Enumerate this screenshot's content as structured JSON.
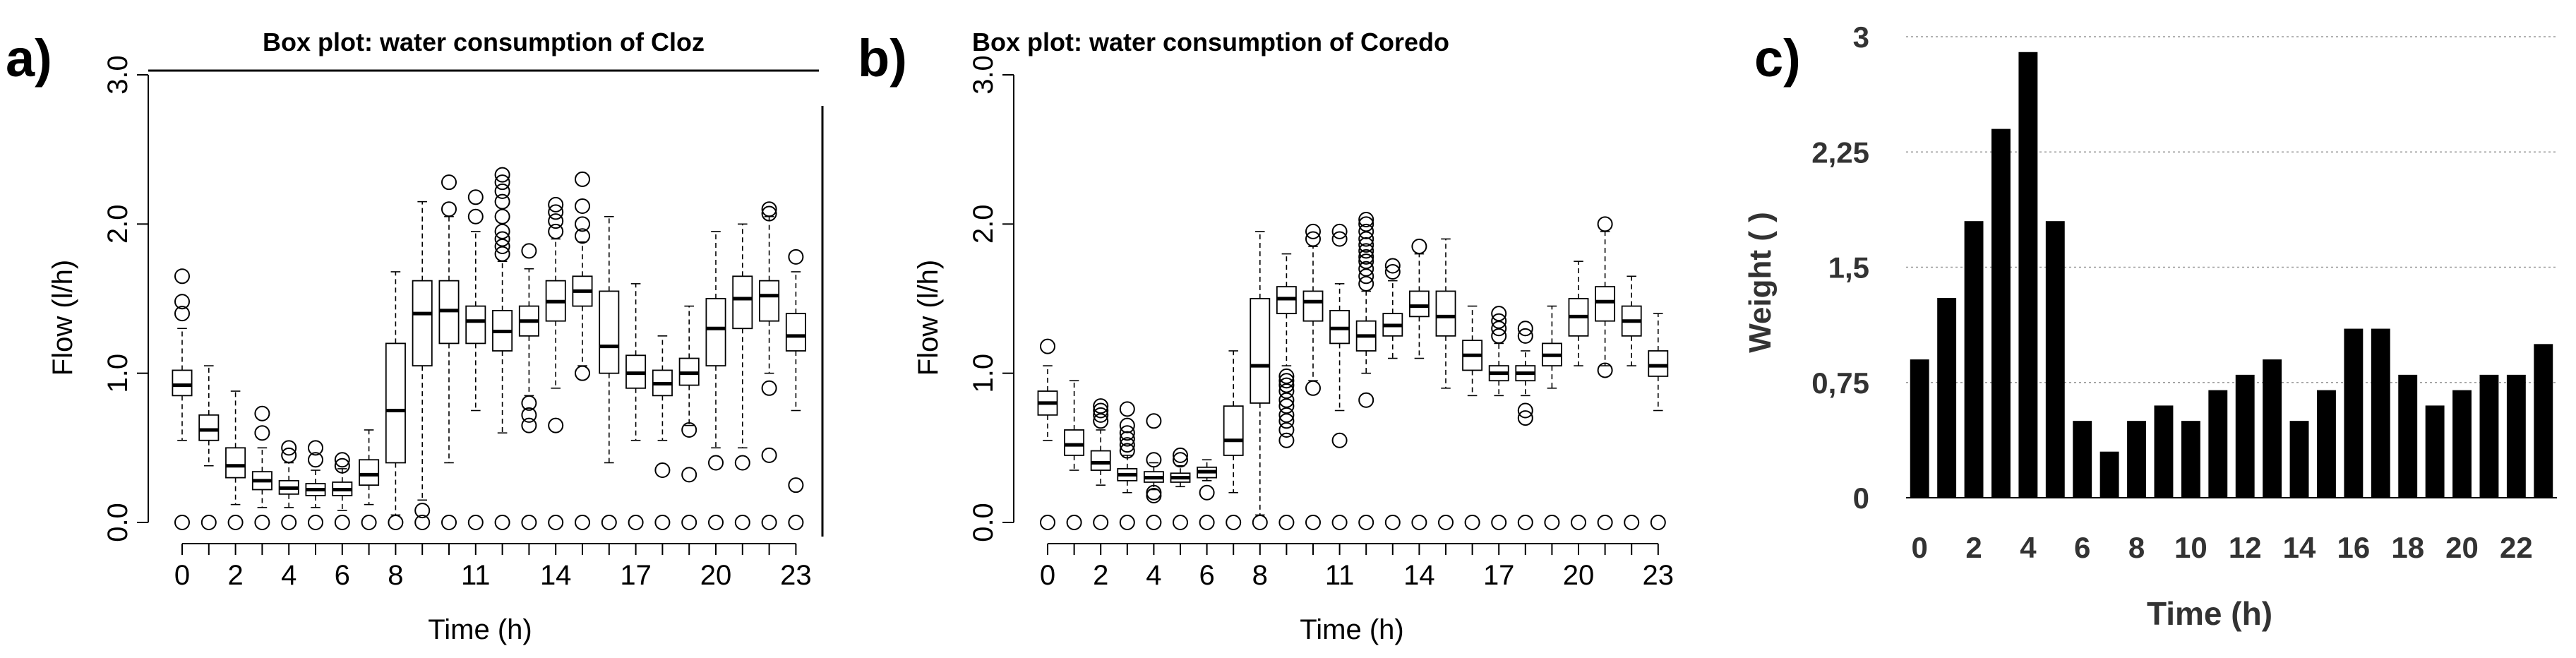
{
  "panel_labels": [
    "a)",
    "b)",
    "c)"
  ],
  "chart_data": [
    {
      "type": "box",
      "title": "Box plot: water consumption of Cloz",
      "xlabel": "Time (h)",
      "ylabel": "Flow (l/h)",
      "ylim": [
        0,
        3
      ],
      "yticks": [
        "0.0",
        "1.0",
        "2.0",
        "3.0"
      ],
      "xticks": [
        "0",
        "2",
        "4",
        "6",
        "8",
        "11",
        "14",
        "17",
        "20",
        "23"
      ],
      "boxes": [
        {
          "hour": 0,
          "wlo": 0.55,
          "q1": 0.85,
          "med": 0.92,
          "q3": 1.02,
          "whi": 1.3,
          "out": [
            0,
            1.4,
            1.48,
            1.65
          ]
        },
        {
          "hour": 1,
          "wlo": 0.38,
          "q1": 0.55,
          "med": 0.62,
          "q3": 0.72,
          "whi": 1.05,
          "out": [
            0
          ]
        },
        {
          "hour": 2,
          "wlo": 0.12,
          "q1": 0.3,
          "med": 0.38,
          "q3": 0.5,
          "whi": 0.88,
          "out": [
            0
          ]
        },
        {
          "hour": 3,
          "wlo": 0.1,
          "q1": 0.22,
          "med": 0.28,
          "q3": 0.34,
          "whi": 0.5,
          "out": [
            0,
            0.6,
            0.73
          ]
        },
        {
          "hour": 4,
          "wlo": 0.1,
          "q1": 0.19,
          "med": 0.23,
          "q3": 0.28,
          "whi": 0.4,
          "out": [
            0,
            0.45,
            0.5
          ]
        },
        {
          "hour": 5,
          "wlo": 0.1,
          "q1": 0.18,
          "med": 0.22,
          "q3": 0.26,
          "whi": 0.35,
          "out": [
            0,
            0.42,
            0.5
          ]
        },
        {
          "hour": 6,
          "wlo": 0.08,
          "q1": 0.18,
          "med": 0.22,
          "q3": 0.27,
          "whi": 0.36,
          "out": [
            0,
            0.38,
            0.42
          ]
        },
        {
          "hour": 7,
          "wlo": 0.12,
          "q1": 0.25,
          "med": 0.32,
          "q3": 0.42,
          "whi": 0.62,
          "out": [
            0
          ]
        },
        {
          "hour": 8,
          "wlo": 0.05,
          "q1": 0.4,
          "med": 0.75,
          "q3": 1.2,
          "whi": 1.68,
          "out": [
            0
          ]
        },
        {
          "hour": 9,
          "wlo": 0.15,
          "q1": 1.05,
          "med": 1.4,
          "q3": 1.62,
          "whi": 2.15,
          "out": [
            0,
            0.08
          ]
        },
        {
          "hour": 10,
          "wlo": 0.4,
          "q1": 1.2,
          "med": 1.42,
          "q3": 1.62,
          "whi": 2.05,
          "out": [
            0,
            2.1,
            2.28
          ]
        },
        {
          "hour": 11,
          "wlo": 0.75,
          "q1": 1.2,
          "med": 1.35,
          "q3": 1.45,
          "whi": 1.95,
          "out": [
            0,
            2.05,
            2.18
          ]
        },
        {
          "hour": 12,
          "wlo": 0.6,
          "q1": 1.15,
          "med": 1.28,
          "q3": 1.42,
          "whi": 1.75,
          "out": [
            0,
            1.8,
            1.85,
            1.9,
            1.95,
            2.05,
            2.15,
            2.22,
            2.28,
            2.33
          ]
        },
        {
          "hour": 13,
          "wlo": 0.85,
          "q1": 1.25,
          "med": 1.35,
          "q3": 1.45,
          "whi": 1.7,
          "out": [
            0,
            0.65,
            0.72,
            0.8,
            1.82
          ]
        },
        {
          "hour": 14,
          "wlo": 0.9,
          "q1": 1.35,
          "med": 1.48,
          "q3": 1.62,
          "whi": 1.9,
          "out": [
            0,
            0.65,
            1.95,
            2.02,
            2.08,
            2.13
          ]
        },
        {
          "hour": 15,
          "wlo": 1.05,
          "q1": 1.45,
          "med": 1.55,
          "q3": 1.65,
          "whi": 1.88,
          "out": [
            0,
            1.0,
            1.92,
            2.0,
            2.12,
            2.3
          ]
        },
        {
          "hour": 16,
          "wlo": 0.4,
          "q1": 1.0,
          "med": 1.18,
          "q3": 1.55,
          "whi": 2.05,
          "out": [
            0
          ]
        },
        {
          "hour": 17,
          "wlo": 0.55,
          "q1": 0.9,
          "med": 1.0,
          "q3": 1.12,
          "whi": 1.6,
          "out": [
            0
          ]
        },
        {
          "hour": 18,
          "wlo": 0.55,
          "q1": 0.85,
          "med": 0.93,
          "q3": 1.02,
          "whi": 1.25,
          "out": [
            0,
            0.35
          ]
        },
        {
          "hour": 19,
          "wlo": 0.65,
          "q1": 0.92,
          "med": 1.0,
          "q3": 1.1,
          "whi": 1.45,
          "out": [
            0,
            0.32,
            0.62
          ]
        },
        {
          "hour": 20,
          "wlo": 0.5,
          "q1": 1.05,
          "med": 1.3,
          "q3": 1.5,
          "whi": 1.95,
          "out": [
            0,
            0.4
          ]
        },
        {
          "hour": 21,
          "wlo": 0.5,
          "q1": 1.3,
          "med": 1.5,
          "q3": 1.65,
          "whi": 2.0,
          "out": [
            0,
            0.4
          ]
        },
        {
          "hour": 22,
          "wlo": 1.0,
          "q1": 1.35,
          "med": 1.52,
          "q3": 1.62,
          "whi": 2.05,
          "out": [
            0,
            0.45,
            0.9,
            2.07,
            2.1
          ]
        },
        {
          "hour": 23,
          "wlo": 0.75,
          "q1": 1.15,
          "med": 1.25,
          "q3": 1.4,
          "whi": 1.68,
          "out": [
            0,
            0.25,
            1.78
          ]
        }
      ]
    },
    {
      "type": "box",
      "title": "Box plot: water consumption of Coredo",
      "xlabel": "Time (h)",
      "ylabel": "Flow (l/h)",
      "ylim": [
        0,
        3
      ],
      "yticks": [
        "0.0",
        "1.0",
        "2.0",
        "3.0"
      ],
      "xticks": [
        "0",
        "2",
        "4",
        "6",
        "8",
        "11",
        "14",
        "17",
        "20",
        "23"
      ],
      "boxes": [
        {
          "hour": 0,
          "wlo": 0.55,
          "q1": 0.72,
          "med": 0.8,
          "q3": 0.88,
          "whi": 1.05,
          "out": [
            0,
            1.18
          ]
        },
        {
          "hour": 1,
          "wlo": 0.35,
          "q1": 0.45,
          "med": 0.52,
          "q3": 0.62,
          "whi": 0.95,
          "out": [
            0
          ]
        },
        {
          "hour": 2,
          "wlo": 0.25,
          "q1": 0.35,
          "med": 0.4,
          "q3": 0.48,
          "whi": 0.62,
          "out": [
            0,
            0.68,
            0.72,
            0.75,
            0.78
          ]
        },
        {
          "hour": 3,
          "wlo": 0.2,
          "q1": 0.28,
          "med": 0.32,
          "q3": 0.36,
          "whi": 0.45,
          "out": [
            0,
            0.48,
            0.52,
            0.56,
            0.6,
            0.65,
            0.76
          ]
        },
        {
          "hour": 4,
          "wlo": 0.22,
          "q1": 0.27,
          "med": 0.3,
          "q3": 0.34,
          "whi": 0.4,
          "out": [
            0,
            0.18,
            0.2,
            0.42,
            0.68
          ]
        },
        {
          "hour": 5,
          "wlo": 0.24,
          "q1": 0.27,
          "med": 0.3,
          "q3": 0.33,
          "whi": 0.38,
          "out": [
            0,
            0.42,
            0.45
          ]
        },
        {
          "hour": 6,
          "wlo": 0.28,
          "q1": 0.3,
          "med": 0.34,
          "q3": 0.37,
          "whi": 0.42,
          "out": [
            0,
            0.2
          ]
        },
        {
          "hour": 7,
          "wlo": 0.2,
          "q1": 0.45,
          "med": 0.55,
          "q3": 0.78,
          "whi": 1.15,
          "out": [
            0
          ]
        },
        {
          "hour": 8,
          "wlo": 0.05,
          "q1": 0.8,
          "med": 1.05,
          "q3": 1.5,
          "whi": 1.95,
          "out": [
            0
          ]
        },
        {
          "hour": 9,
          "wlo": 1.05,
          "q1": 1.4,
          "med": 1.5,
          "q3": 1.58,
          "whi": 1.8,
          "out": [
            0,
            0.55,
            0.62,
            0.68,
            0.72,
            0.78,
            0.82,
            0.88,
            0.92,
            0.95,
            0.98
          ]
        },
        {
          "hour": 10,
          "wlo": 0.95,
          "q1": 1.35,
          "med": 1.48,
          "q3": 1.55,
          "whi": 1.85,
          "out": [
            0,
            0.9,
            1.9,
            1.95
          ]
        },
        {
          "hour": 11,
          "wlo": 0.75,
          "q1": 1.2,
          "med": 1.3,
          "q3": 1.42,
          "whi": 1.6,
          "out": [
            0,
            0.55,
            1.9,
            1.95
          ]
        },
        {
          "hour": 12,
          "wlo": 1.0,
          "q1": 1.15,
          "med": 1.25,
          "q3": 1.35,
          "whi": 1.55,
          "out": [
            0,
            0.82,
            1.6,
            1.65,
            1.7,
            1.75,
            1.78,
            1.82,
            1.86,
            1.9,
            1.95,
            2.0,
            2.03
          ]
        },
        {
          "hour": 13,
          "wlo": 1.1,
          "q1": 1.25,
          "med": 1.32,
          "q3": 1.4,
          "whi": 1.62,
          "out": [
            0,
            1.68,
            1.72
          ]
        },
        {
          "hour": 14,
          "wlo": 1.1,
          "q1": 1.38,
          "med": 1.45,
          "q3": 1.55,
          "whi": 1.8,
          "out": [
            0,
            1.85
          ]
        },
        {
          "hour": 15,
          "wlo": 0.9,
          "q1": 1.25,
          "med": 1.38,
          "q3": 1.55,
          "whi": 1.9,
          "out": [
            0
          ]
        },
        {
          "hour": 16,
          "wlo": 0.85,
          "q1": 1.02,
          "med": 1.12,
          "q3": 1.22,
          "whi": 1.45,
          "out": [
            0
          ]
        },
        {
          "hour": 17,
          "wlo": 0.85,
          "q1": 0.95,
          "med": 1.0,
          "q3": 1.05,
          "whi": 1.2,
          "out": [
            0,
            1.25,
            1.3,
            1.35,
            1.4
          ]
        },
        {
          "hour": 18,
          "wlo": 0.85,
          "q1": 0.95,
          "med": 1.0,
          "q3": 1.05,
          "whi": 1.15,
          "out": [
            0,
            0.7,
            0.75,
            1.25,
            1.3
          ]
        },
        {
          "hour": 19,
          "wlo": 0.9,
          "q1": 1.05,
          "med": 1.12,
          "q3": 1.2,
          "whi": 1.45,
          "out": [
            0
          ]
        },
        {
          "hour": 20,
          "wlo": 1.05,
          "q1": 1.25,
          "med": 1.38,
          "q3": 1.5,
          "whi": 1.75,
          "out": [
            0
          ]
        },
        {
          "hour": 21,
          "wlo": 1.05,
          "q1": 1.35,
          "med": 1.48,
          "q3": 1.58,
          "whi": 1.95,
          "out": [
            0,
            1.02,
            2.0
          ]
        },
        {
          "hour": 22,
          "wlo": 1.05,
          "q1": 1.25,
          "med": 1.35,
          "q3": 1.45,
          "whi": 1.65,
          "out": [
            0
          ]
        },
        {
          "hour": 23,
          "wlo": 0.75,
          "q1": 0.98,
          "med": 1.05,
          "q3": 1.15,
          "whi": 1.4,
          "out": [
            0
          ]
        }
      ]
    },
    {
      "type": "bar",
      "title": "",
      "xlabel": "Time (h)",
      "ylabel": "Weight ( )",
      "ylim": [
        0,
        3
      ],
      "yticks": [
        "0",
        "0,75",
        "1,5",
        "2,25",
        "3"
      ],
      "xticks": [
        "0",
        "2",
        "4",
        "6",
        "8",
        "10",
        "12",
        "14",
        "16",
        "18",
        "20",
        "22"
      ],
      "categories": [
        "0",
        "1",
        "2",
        "3",
        "4",
        "5",
        "6",
        "7",
        "8",
        "9",
        "10",
        "11",
        "12",
        "13",
        "14",
        "15",
        "16",
        "17",
        "18",
        "19",
        "20",
        "21",
        "22",
        "23"
      ],
      "values": [
        0.9,
        1.3,
        1.8,
        2.4,
        2.9,
        1.8,
        0.5,
        0.3,
        0.5,
        0.6,
        0.5,
        0.7,
        0.8,
        0.9,
        0.5,
        0.7,
        1.1,
        1.1,
        0.8,
        0.6,
        0.7,
        0.8,
        0.8,
        1.0
      ]
    }
  ]
}
